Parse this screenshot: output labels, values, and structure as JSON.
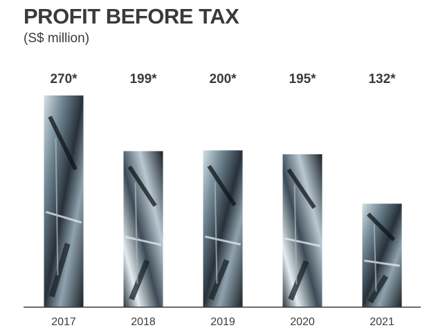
{
  "chart_data": {
    "type": "bar",
    "title": "PROFIT BEFORE TAX",
    "subtitle": "(S$ million)",
    "categories": [
      "2017",
      "2018",
      "2019",
      "2020",
      "2021"
    ],
    "values": [
      270,
      199,
      200,
      195,
      132
    ],
    "value_labels": [
      "270*",
      "199*",
      "200*",
      "195*",
      "132*"
    ],
    "xlabel": "",
    "ylabel": "",
    "ylim": [
      0,
      270
    ],
    "grid": false,
    "legend": "none"
  },
  "colors": {
    "text": "#3a3a3a",
    "axis": "#3a3a3a",
    "bar_dark": "#1c2328",
    "bar_mid": "#5f7480",
    "bar_light": "#c9d6dd"
  }
}
